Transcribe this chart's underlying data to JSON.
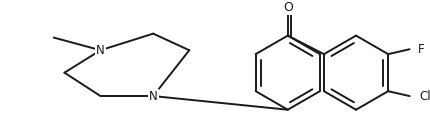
{
  "background_color": "#ffffff",
  "line_color": "#1a1a1a",
  "line_width": 1.4,
  "font_size": 8.5,
  "figsize": [
    4.3,
    1.38
  ],
  "dpi": 100,
  "xlim": [
    0,
    430
  ],
  "ylim": [
    0,
    138
  ]
}
